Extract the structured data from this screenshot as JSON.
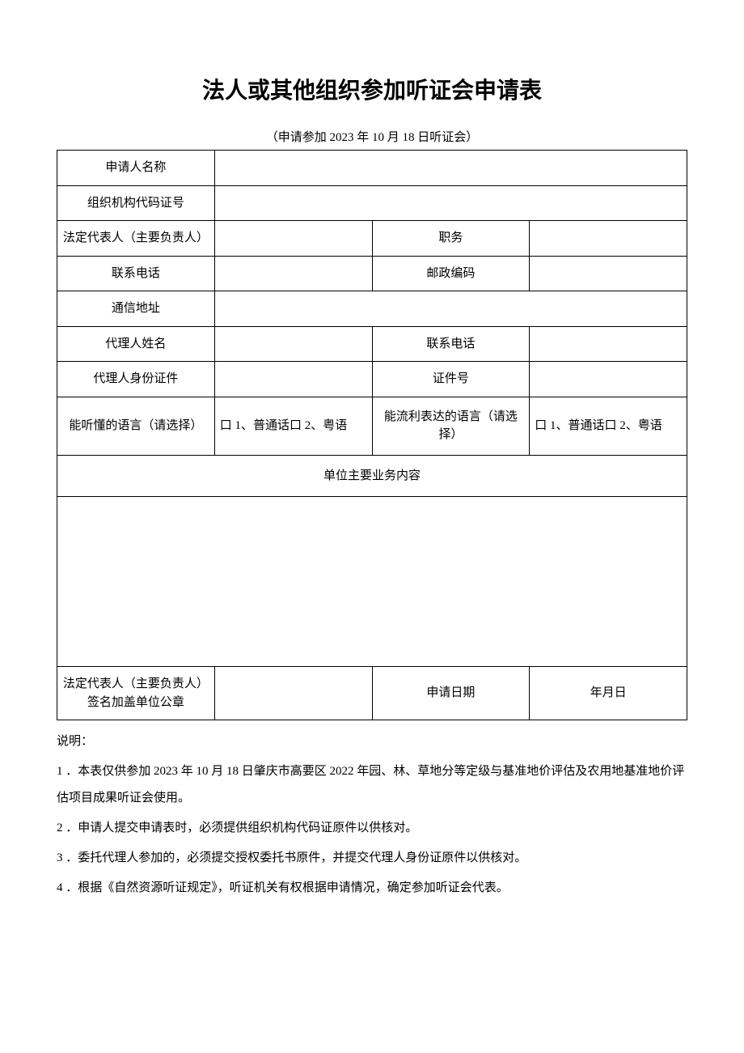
{
  "title": "法人或其他组织参加听证会申请表",
  "subtitle": "（申请参加 2023 年 10 月 18 日听证会）",
  "rows": {
    "applicant_name": "申请人名称",
    "org_code": "组织机构代码证号",
    "legal_rep": "法定代表人（主要负责人）",
    "position": "职务",
    "phone": "联系电话",
    "postal": "邮政编码",
    "address": "通信地址",
    "agent_name": "代理人姓名",
    "agent_phone": "联系电话",
    "agent_id_type": "代理人身份证件",
    "agent_id_no": "证件号",
    "lang_understand": "能听懂的语言（请选择）",
    "lang_speak": "能流利表达的语言（请选择）",
    "lang_options_1": "口 1、普通话口 2、粤语",
    "lang_options_2": "口 1、普通话口 2、粤语",
    "business_content": "单位主要业务内容",
    "signature": "法定代表人（主要负责人）签名加盖单位公章",
    "apply_date_label": "申请日期",
    "apply_date_value": "年月日"
  },
  "notes": {
    "header": "说明：",
    "items": [
      "1 ．本表仅供参加 2023 年 10 月 18 日肇庆市高要区 2022 年园、林、草地分等定级与基准地价评估及农用地基准地价评估项目成果听证会使用。",
      "2 ．申请人提交申请表时，必须提供组织机构代码证原件以供核对。",
      "3 ．委托代理人参加的，必须提交授权委托书原件，并提交代理人身份证原件以供核对。",
      "4 ．根据《自然资源听证规定》，听证机关有权根据申请情况，确定参加听证会代表。"
    ]
  },
  "colors": {
    "background": "#ffffff",
    "text": "#000000",
    "border": "#000000"
  },
  "typography": {
    "title_fontsize": 28,
    "body_fontsize": 15,
    "title_family": "SimHei",
    "body_family": "SimSun"
  }
}
